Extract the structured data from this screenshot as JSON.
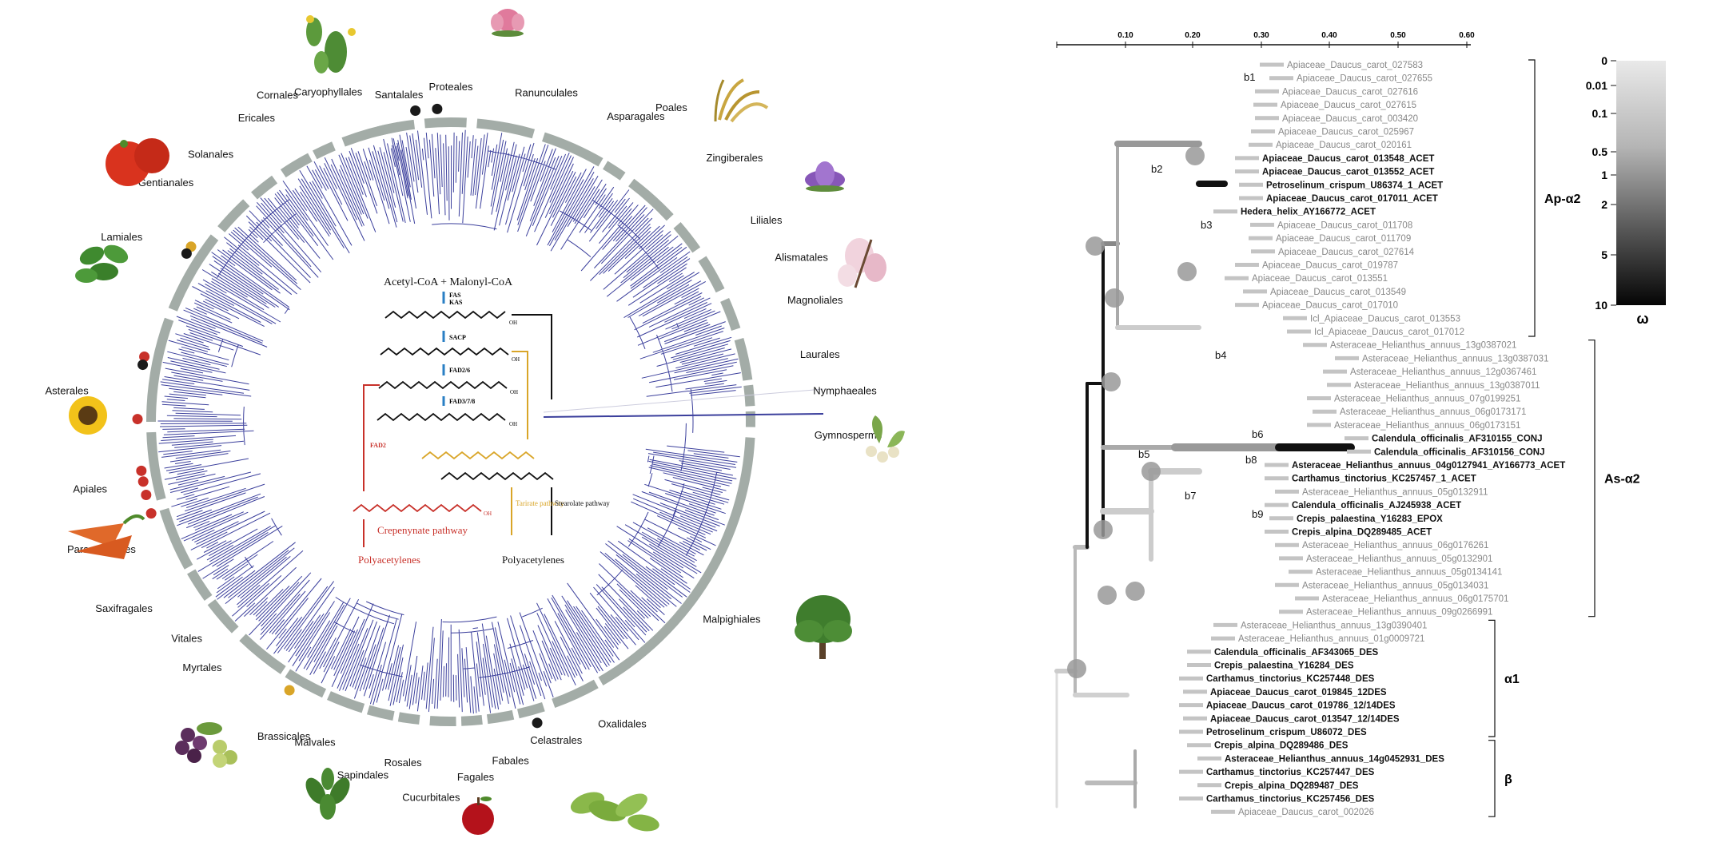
{
  "circle": {
    "orders": [
      "Santalales",
      "Proteales",
      "Ranunculales",
      "Asparagales",
      "Poales",
      "Zingiberales",
      "Liliales",
      "Alismatales",
      "Magnoliales",
      "Laurales",
      "Nymphaeales",
      "Gymnosperms",
      "Malpighiales",
      "Oxalidales",
      "Celastrales",
      "Fabales",
      "Fagales",
      "Cucurbitales",
      "Rosales",
      "Sapindales",
      "Malvales",
      "Brassicales",
      "Myrtales",
      "Vitales",
      "Saxifragales",
      "Paracryphiales",
      "Apiales",
      "Asterales",
      "Lamiales",
      "Gentianales",
      "Solanales",
      "Ericales",
      "Cornales",
      "Caryophyllales"
    ],
    "pathway": {
      "substrate": "Acetyl-CoA + Malonyl-CoA",
      "enzymes": [
        "FAS",
        "KAS",
        "SACP",
        "FAD2/6",
        "FAD3/7/8",
        "FAD2"
      ],
      "oh": "OH",
      "crep": "Crepenynate pathway",
      "tar": "Tarirate pathway",
      "stear": "Stearolate pathway",
      "poly1": "Polyacetylenes",
      "poly2": "Polyacetylenes"
    },
    "colors": {
      "tree": "#3b3f9c",
      "ring": "#a3aca7",
      "red": "#c8312a",
      "yellow": "#d9a528",
      "black": "#1a1a1a"
    }
  },
  "gene_tree": {
    "axis_ticks": [
      "0.10",
      "0.20",
      "0.30",
      "0.40",
      "0.50",
      "0.60"
    ],
    "leaves": [
      {
        "label": "Apiaceae_Daucus_carot_027583",
        "bold": false
      },
      {
        "label": "Apiaceae_Daucus_carot_027655",
        "bold": false
      },
      {
        "label": "Apiaceae_Daucus_carot_027616",
        "bold": false
      },
      {
        "label": "Apiaceae_Daucus_carot_027615",
        "bold": false
      },
      {
        "label": "Apiaceae_Daucus_carot_003420",
        "bold": false
      },
      {
        "label": "Apiaceae_Daucus_carot_025967",
        "bold": false
      },
      {
        "label": "Apiaceae_Daucus_carot_020161",
        "bold": false
      },
      {
        "label": "Apiaceae_Daucus_carot_013548_ACET",
        "bold": true
      },
      {
        "label": "Apiaceae_Daucus_carot_013552_ACET",
        "bold": true
      },
      {
        "label": "Petroselinum_crispum_U86374_1_ACET",
        "bold": true
      },
      {
        "label": "Apiaceae_Daucus_carot_017011_ACET",
        "bold": true
      },
      {
        "label": "Hedera_helix_AY166772_ACET",
        "bold": true
      },
      {
        "label": "Apiaceae_Daucus_carot_011708",
        "bold": false
      },
      {
        "label": "Apiaceae_Daucus_carot_011709",
        "bold": false
      },
      {
        "label": "Apiaceae_Daucus_carot_027614",
        "bold": false
      },
      {
        "label": "Apiaceae_Daucus_carot_019787",
        "bold": false
      },
      {
        "label": "Apiaceae_Daucus_carot_013551",
        "bold": false
      },
      {
        "label": "Apiaceae_Daucus_carot_013549",
        "bold": false
      },
      {
        "label": "Apiaceae_Daucus_carot_017010",
        "bold": false
      },
      {
        "label": "Icl_Apiaceae_Daucus_carot_013553",
        "bold": false
      },
      {
        "label": "Icl_Apiaceae_Daucus_carot_017012",
        "bold": false
      },
      {
        "label": "Asteraceae_Helianthus_annuus_13g0387021",
        "bold": false
      },
      {
        "label": "Asteraceae_Helianthus_annuus_13g0387031",
        "bold": false
      },
      {
        "label": "Asteraceae_Helianthus_annuus_12g0367461",
        "bold": false
      },
      {
        "label": "Asteraceae_Helianthus_annuus_13g0387011",
        "bold": false
      },
      {
        "label": "Asteraceae_Helianthus_annuus_07g0199251",
        "bold": false
      },
      {
        "label": "Asteraceae_Helianthus_annuus_06g0173171",
        "bold": false
      },
      {
        "label": "Asteraceae_Helianthus_annuus_06g0173151",
        "bold": false
      },
      {
        "label": "Calendula_officinalis_AF310155_CONJ",
        "bold": true
      },
      {
        "label": "Calendula_officinalis_AF310156_CONJ",
        "bold": true
      },
      {
        "label": "Asteraceae_Helianthus_annuus_04g0127941_AY166773_ACET",
        "bold": true
      },
      {
        "label": "Carthamus_tinctorius_KC257457_1_ACET",
        "bold": true
      },
      {
        "label": "Asteraceae_Helianthus_annuus_05g0132911",
        "bold": false
      },
      {
        "label": "Calendula_officinalis_AJ245938_ACET",
        "bold": true
      },
      {
        "label": "Crepis_palaestina_Y16283_EPOX",
        "bold": true
      },
      {
        "label": "Crepis_alpina_DQ289485_ACET",
        "bold": true
      },
      {
        "label": "Asteraceae_Helianthus_annuus_06g0176261",
        "bold": false
      },
      {
        "label": "Asteraceae_Helianthus_annuus_05g0132901",
        "bold": false
      },
      {
        "label": "Asteraceae_Helianthus_annuus_05g0134141",
        "bold": false
      },
      {
        "label": "Asteraceae_Helianthus_annuus_05g0134031",
        "bold": false
      },
      {
        "label": "Asteraceae_Helianthus_annuus_06g0175701",
        "bold": false
      },
      {
        "label": "Asteraceae_Helianthus_annuus_09g0266991",
        "bold": false
      },
      {
        "label": "Asteraceae_Helianthus_annuus_13g0390401",
        "bold": false
      },
      {
        "label": "Asteraceae_Helianthus_annuus_01g0009721",
        "bold": false
      },
      {
        "label": "Calendula_officinalis_AF343065_DES",
        "bold": true
      },
      {
        "label": "Crepis_palaestina_Y16284_DES",
        "bold": true
      },
      {
        "label": "Carthamus_tinctorius_KC257448_DES",
        "bold": true
      },
      {
        "label": "Apiaceae_Daucus_carot_019845_12DES",
        "bold": true
      },
      {
        "label": "Apiaceae_Daucus_carot_019786_12/14DES",
        "bold": true
      },
      {
        "label": "Apiaceae_Daucus_carot_013547_12/14DES",
        "bold": true
      },
      {
        "label": "Petroselinum_crispum_U86072_DES",
        "bold": true
      },
      {
        "label": "Crepis_alpina_DQ289486_DES",
        "bold": true
      },
      {
        "label": "Asteraceae_Helianthus_annuus_14g0452931_DES",
        "bold": true
      },
      {
        "label": "Carthamus_tinctorius_KC257447_DES",
        "bold": true
      },
      {
        "label": "Crepis_alpina_DQ289487_DES",
        "bold": true
      },
      {
        "label": "Carthamus_tinctorius_KC257456_DES",
        "bold": true
      },
      {
        "label": "Apiaceae_Daucus_carot_002026",
        "bold": false
      }
    ],
    "branch_labels": [
      "b1",
      "b2",
      "b3",
      "b4",
      "b5",
      "b6",
      "b7",
      "b8",
      "b9"
    ],
    "clades": [
      "Ap-α2",
      "As-α2",
      "α1",
      "β"
    ],
    "legend": {
      "ticks": [
        "0",
        "0.01",
        "0.1",
        "0.5",
        "1",
        "2",
        "5",
        "10"
      ],
      "title": "ω"
    }
  }
}
